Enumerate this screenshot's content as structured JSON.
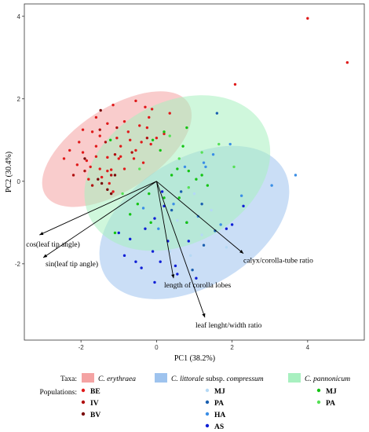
{
  "chart_data": {
    "type": "scatter",
    "xlabel": "PC1 (38.2%)",
    "ylabel": "PC2 (30.4%)",
    "xlim": [
      -3.5,
      5.5
    ],
    "ylim": [
      -3.85,
      4.3
    ],
    "xticks": [
      -2,
      0,
      2,
      4
    ],
    "yticks": [
      -2,
      0,
      2,
      4
    ],
    "ellipses": [
      {
        "taxon": "C. erythraea",
        "color": "#f4a3a3",
        "cx": -1.05,
        "cy": 0.78,
        "rx": 2.25,
        "ry": 1.0,
        "angle": 33
      },
      {
        "taxon": "C. littorale subsp. compressum",
        "color": "#9ec3ee",
        "cx": 1.0,
        "cy": -1.0,
        "rx": 2.75,
        "ry": 1.55,
        "angle": 31
      },
      {
        "taxon": "C. pannonicum",
        "color": "#a8f0c0",
        "cx": 0.55,
        "cy": 0.2,
        "rx": 2.6,
        "ry": 1.72,
        "angle": 28
      }
    ],
    "loadings": [
      {
        "label": "cos(leaf tip angle)",
        "x": -3.1,
        "y": -1.3
      },
      {
        "label": "sin(leaf tip angle)",
        "x": -3.0,
        "y": -1.85
      },
      {
        "label": "length of corolla lobes",
        "x": 0.45,
        "y": -2.35
      },
      {
        "label": "leaf lenght/width ratio",
        "x": 1.28,
        "y": -3.3
      },
      {
        "label": "calyx/corolla-tube ratio",
        "x": 2.3,
        "y": -1.75
      }
    ],
    "series": [
      {
        "name": "BE",
        "color": "#e01a1a",
        "points": [
          [
            4.0,
            3.95
          ],
          [
            5.05,
            2.88
          ],
          [
            2.08,
            2.35
          ],
          [
            -1.15,
            1.85
          ],
          [
            -0.55,
            1.95
          ],
          [
            -0.3,
            1.8
          ],
          [
            -0.12,
            1.75
          ],
          [
            0.35,
            1.65
          ],
          [
            -1.6,
            1.55
          ],
          [
            -1.3,
            1.4
          ],
          [
            -0.85,
            1.45
          ],
          [
            -0.45,
            1.35
          ],
          [
            -0.25,
            1.3
          ],
          [
            -1.95,
            1.25
          ],
          [
            -1.7,
            1.2
          ],
          [
            -1.5,
            1.1
          ],
          [
            -1.05,
            1.05
          ],
          [
            -0.7,
            1.0
          ],
          [
            -0.4,
            0.95
          ],
          [
            -0.15,
            0.9
          ],
          [
            -2.3,
            0.75
          ],
          [
            -1.95,
            0.7
          ],
          [
            -1.6,
            0.6
          ],
          [
            -1.3,
            0.58
          ],
          [
            -0.95,
            0.6
          ],
          [
            -0.6,
            0.55
          ],
          [
            -2.1,
            0.4
          ],
          [
            -1.75,
            0.35
          ],
          [
            -1.5,
            0.3
          ],
          [
            -1.2,
            0.28
          ],
          [
            -0.85,
            0.3
          ],
          [
            -1.8,
            0.05
          ],
          [
            -1.45,
            0.1
          ],
          [
            -1.25,
            -0.05
          ],
          [
            -1.15,
            -0.25
          ],
          [
            -0.75,
            1.2
          ],
          [
            0.0,
            1.05
          ],
          [
            0.2,
            1.15
          ],
          [
            -0.2,
            1.55
          ],
          [
            -2.05,
            0.95
          ],
          [
            -0.95,
            0.85
          ],
          [
            -0.35,
            0.45
          ],
          [
            -1.6,
            0.85
          ],
          [
            -1.3,
            0.25
          ],
          [
            -1.0,
            0.55
          ],
          [
            -0.55,
            0.75
          ],
          [
            -2.45,
            0.55
          ],
          [
            -1.85,
            0.5
          ]
        ]
      },
      {
        "name": "IV",
        "color": "#b01010",
        "points": [
          [
            -1.5,
            1.25
          ],
          [
            -1.35,
            0.95
          ],
          [
            -1.1,
            0.65
          ],
          [
            -0.65,
            0.7
          ],
          [
            -1.9,
            0.25
          ],
          [
            -2.2,
            0.15
          ],
          [
            -1.7,
            -0.1
          ],
          [
            -1.2,
            0.15
          ],
          [
            -0.25,
            1.05
          ],
          [
            -1.05,
            1.3
          ]
        ]
      },
      {
        "name": "BV",
        "color": "#7a0a0a",
        "points": [
          [
            -1.48,
            1.72
          ],
          [
            -1.2,
            -0.3
          ],
          [
            -1.45,
            -0.05
          ],
          [
            -1.55,
            0.05
          ],
          [
            -1.9,
            0.55
          ],
          [
            -1.1,
            0.15
          ],
          [
            -1.3,
            -0.2
          ]
        ]
      },
      {
        "name": "MJ (C. littorale)",
        "color": "#b5d9f5",
        "points": [
          [
            1.0,
            -0.3
          ],
          [
            0.9,
            -1.8
          ],
          [
            0.35,
            -1.7
          ],
          [
            1.45,
            -0.7
          ],
          [
            0.55,
            -0.95
          ],
          [
            1.2,
            -1.3
          ],
          [
            1.85,
            -1.6
          ]
        ]
      },
      {
        "name": "PA (C. littorale)",
        "color": "#1a5fb0",
        "points": [
          [
            1.6,
            1.65
          ],
          [
            1.2,
            -0.55
          ],
          [
            0.8,
            -1.0
          ],
          [
            1.55,
            -1.2
          ],
          [
            0.4,
            -0.7
          ],
          [
            0.95,
            -2.15
          ],
          [
            1.25,
            -1.55
          ],
          [
            0.65,
            -0.25
          ]
        ]
      },
      {
        "name": "HA",
        "color": "#3a8ee6",
        "points": [
          [
            3.05,
            -0.1
          ],
          [
            3.68,
            0.15
          ],
          [
            1.3,
            0.35
          ],
          [
            1.25,
            0.45
          ],
          [
            1.95,
            0.9
          ],
          [
            0.75,
            0.35
          ],
          [
            2.25,
            -0.35
          ],
          [
            0.45,
            -0.55
          ],
          [
            -0.35,
            -0.65
          ],
          [
            1.7,
            -1.05
          ],
          [
            1.1,
            -0.85
          ],
          [
            0.05,
            -1.15
          ],
          [
            1.5,
            0.65
          ]
        ]
      },
      {
        "name": "AS",
        "color": "#0f1fd6",
        "points": [
          [
            2.3,
            -0.6
          ],
          [
            1.85,
            -1.15
          ],
          [
            2.0,
            -1.05
          ],
          [
            0.3,
            -1.45
          ],
          [
            -0.1,
            -1.7
          ],
          [
            -0.85,
            -1.8
          ],
          [
            -0.4,
            -2.1
          ],
          [
            -0.55,
            -1.95
          ],
          [
            0.1,
            -1.95
          ],
          [
            -0.05,
            -2.45
          ],
          [
            0.55,
            -2.25
          ],
          [
            1.05,
            -2.35
          ],
          [
            0.85,
            -1.45
          ],
          [
            0.15,
            -0.25
          ],
          [
            -0.7,
            -1.4
          ],
          [
            -0.3,
            -1.15
          ],
          [
            -0.05,
            -0.9
          ],
          [
            -1.0,
            -1.25
          ],
          [
            0.5,
            -2.05
          ],
          [
            0.2,
            -0.6
          ]
        ]
      },
      {
        "name": "MJ (C. pannonicum)",
        "color": "#14c414",
        "points": [
          [
            0.2,
            1.2
          ],
          [
            0.8,
            1.3
          ],
          [
            -0.1,
            1.0
          ],
          [
            -1.22,
            1.0
          ],
          [
            0.7,
            0.85
          ],
          [
            0.1,
            0.75
          ],
          [
            0.55,
            0.3
          ],
          [
            0.85,
            0.25
          ],
          [
            1.2,
            0.15
          ],
          [
            0.4,
            0.15
          ],
          [
            1.35,
            -0.1
          ],
          [
            0.2,
            -0.4
          ],
          [
            -0.2,
            -0.3
          ],
          [
            -1.1,
            -1.25
          ],
          [
            -0.7,
            -0.8
          ],
          [
            -0.15,
            -1.0
          ],
          [
            0.8,
            -1.0
          ],
          [
            1.05,
            0.05
          ],
          [
            0.6,
            -0.4
          ],
          [
            -0.5,
            -0.55
          ]
        ]
      },
      {
        "name": "PA (C. pannonicum)",
        "color": "#55e055",
        "points": [
          [
            1.65,
            0.9
          ],
          [
            0.35,
            1.1
          ],
          [
            0.6,
            0.55
          ],
          [
            -0.9,
            -0.3
          ],
          [
            -0.45,
            0.3
          ],
          [
            1.2,
            0.7
          ],
          [
            2.05,
            0.35
          ],
          [
            0.85,
            -0.15
          ]
        ]
      }
    ]
  },
  "legend": {
    "taxa_label": "Taxa:",
    "populations_label": "Populations:",
    "taxa": [
      {
        "name": "C. erythraea",
        "suffix": "",
        "color": "#f4a3a3"
      },
      {
        "name": "C. littorale",
        "suffix": " subsp. ",
        "name2": "compressum",
        "color": "#9ec3ee"
      },
      {
        "name": "C. pannonicum",
        "suffix": "",
        "color": "#a8f0c0"
      }
    ],
    "populations": [
      [
        {
          "label": "BE",
          "color": "#e01a1a"
        },
        {
          "label": "IV",
          "color": "#b01010"
        },
        {
          "label": "BV",
          "color": "#7a0a0a"
        }
      ],
      [
        {
          "label": "MJ",
          "color": "#b5d9f5"
        },
        {
          "label": "PA",
          "color": "#1a5fb0"
        },
        {
          "label": "HA",
          "color": "#3a8ee6"
        },
        {
          "label": "AS",
          "color": "#0f1fd6"
        }
      ],
      [
        {
          "label": "MJ",
          "color": "#14c414"
        },
        {
          "label": "PA",
          "color": "#55e055"
        }
      ]
    ]
  }
}
